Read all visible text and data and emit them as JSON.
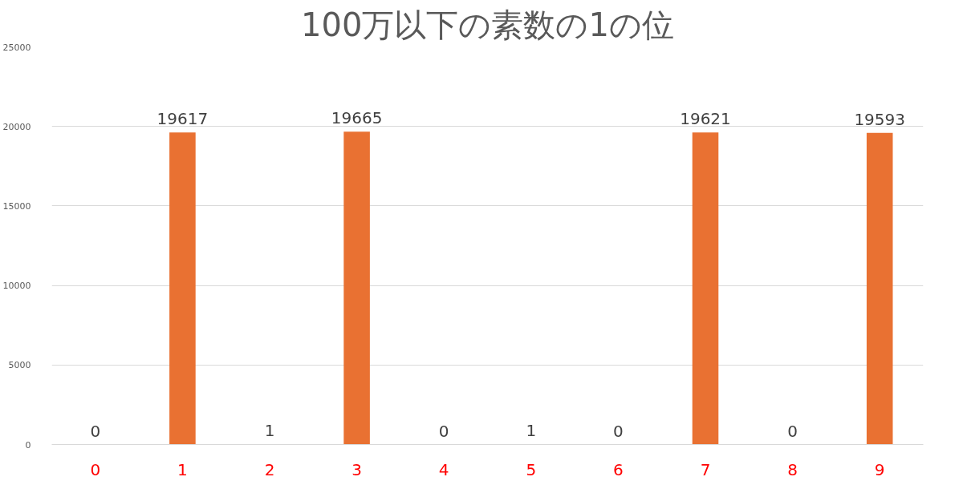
{
  "chart_data": {
    "type": "bar",
    "title": "100万以下の素数の1の位",
    "categories": [
      "0",
      "1",
      "2",
      "3",
      "4",
      "5",
      "6",
      "7",
      "8",
      "9"
    ],
    "values": [
      0,
      19617,
      1,
      19665,
      0,
      1,
      0,
      19621,
      0,
      19593
    ],
    "color": "#e97132",
    "ylim": [
      0,
      25000
    ],
    "yticks": [
      0,
      5000,
      10000,
      15000,
      20000,
      25000
    ],
    "grid": "y",
    "data_labels": true
  }
}
